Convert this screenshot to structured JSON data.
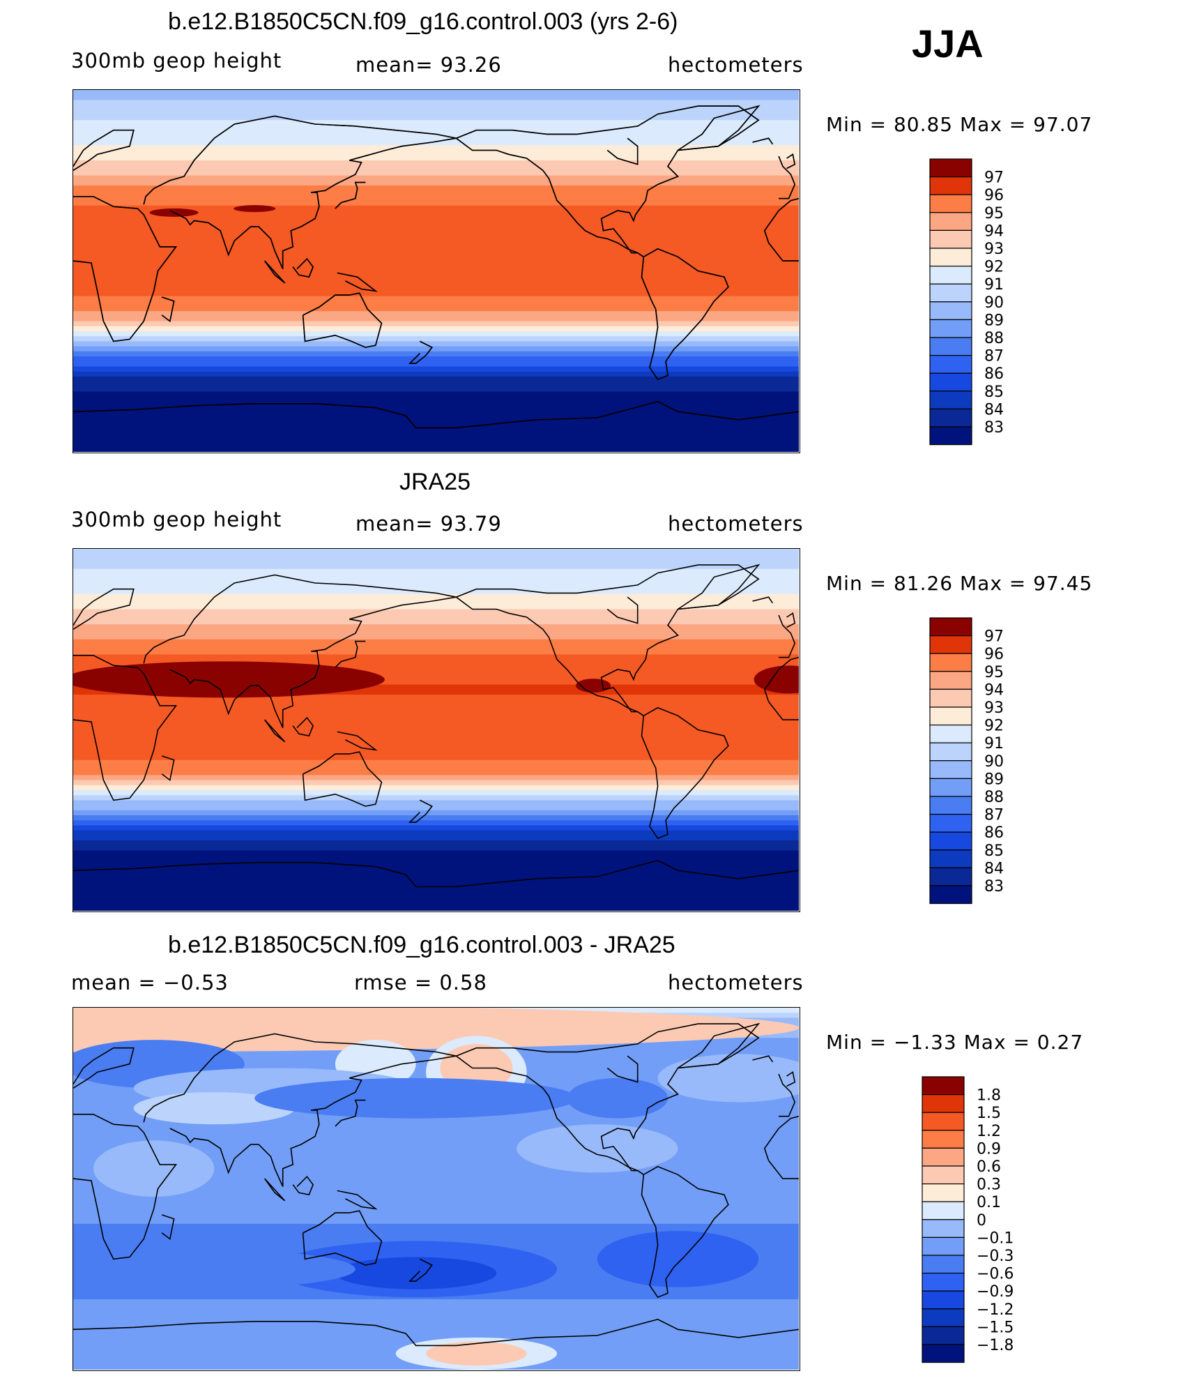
{
  "season": "JJA",
  "panels": [
    {
      "title": "b.e12.B1850C5CN.f09_g16.control.003 (yrs 2-6)",
      "left_label": "300mb geop height",
      "center_label": "mean=   93.26",
      "right_label": "hectometers",
      "minmax": "Min =   80.85 Max =   97.07"
    },
    {
      "title": "JRA25",
      "left_label": "300mb geop height",
      "center_label": "mean=   93.79",
      "right_label": "hectometers",
      "minmax": "Min =   81.26 Max =   97.45"
    },
    {
      "title": "b.e12.B1850C5CN.f09_g16.control.003 - JRA25",
      "left_label": "mean =   −0.53",
      "center_label": "rmse =    0.58",
      "right_label": "hectometers",
      "minmax": "Min =   −1.33 Max =    0.27"
    }
  ],
  "chart_data": [
    {
      "type": "heatmap",
      "title": "b.e12.B1850C5CN.f09_g16.control.003 (yrs 2-6)",
      "variable": "300mb geop height",
      "units": "hectometers",
      "mean": 93.26,
      "min": 80.85,
      "max": 97.07,
      "lon_range": [
        0,
        360
      ],
      "lat_range": [
        -90,
        90
      ],
      "colorbar_levels": [
        "97",
        "96",
        "95",
        "94",
        "93",
        "92",
        "91",
        "90",
        "89",
        "88",
        "87",
        "86",
        "85",
        "84",
        "83"
      ],
      "zonal_profile": [
        {
          "lat": 90,
          "value": 89.5
        },
        {
          "lat": 80,
          "value": 90.5
        },
        {
          "lat": 70,
          "value": 91.3
        },
        {
          "lat": 60,
          "value": 92.4
        },
        {
          "lat": 50,
          "value": 93.8
        },
        {
          "lat": 40,
          "value": 95.2
        },
        {
          "lat": 30,
          "value": 96.2
        },
        {
          "lat": 20,
          "value": 96.7
        },
        {
          "lat": 10,
          "value": 96.6
        },
        {
          "lat": 0,
          "value": 96.5
        },
        {
          "lat": -10,
          "value": 96.3
        },
        {
          "lat": -20,
          "value": 95.3
        },
        {
          "lat": -25,
          "value": 94.0
        },
        {
          "lat": -30,
          "value": 92.0
        },
        {
          "lat": -35,
          "value": 90.0
        },
        {
          "lat": -40,
          "value": 88.2
        },
        {
          "lat": -45,
          "value": 86.5
        },
        {
          "lat": -50,
          "value": 85.0
        },
        {
          "lat": -55,
          "value": 83.6
        },
        {
          "lat": -60,
          "value": 82.8
        },
        {
          "lat": -70,
          "value": 81.5
        },
        {
          "lat": -90,
          "value": 81.0
        }
      ]
    },
    {
      "type": "heatmap",
      "title": "JRA25",
      "variable": "300mb geop height",
      "units": "hectometers",
      "mean": 93.79,
      "min": 81.26,
      "max": 97.45,
      "lon_range": [
        0,
        360
      ],
      "lat_range": [
        -90,
        90
      ],
      "colorbar_levels": [
        "97",
        "96",
        "95",
        "94",
        "93",
        "92",
        "91",
        "90",
        "89",
        "88",
        "87",
        "86",
        "85",
        "84",
        "83"
      ],
      "zonal_profile": [
        {
          "lat": 90,
          "value": 90.2
        },
        {
          "lat": 80,
          "value": 91.0
        },
        {
          "lat": 70,
          "value": 91.8
        },
        {
          "lat": 60,
          "value": 93.0
        },
        {
          "lat": 50,
          "value": 94.4
        },
        {
          "lat": 40,
          "value": 95.8
        },
        {
          "lat": 30,
          "value": 96.8
        },
        {
          "lat": 20,
          "value": 97.1
        },
        {
          "lat": 10,
          "value": 96.8
        },
        {
          "lat": 0,
          "value": 96.6
        },
        {
          "lat": -10,
          "value": 96.4
        },
        {
          "lat": -20,
          "value": 95.5
        },
        {
          "lat": -25,
          "value": 94.3
        },
        {
          "lat": -30,
          "value": 92.4
        },
        {
          "lat": -35,
          "value": 90.4
        },
        {
          "lat": -40,
          "value": 88.6
        },
        {
          "lat": -45,
          "value": 86.8
        },
        {
          "lat": -50,
          "value": 85.3
        },
        {
          "lat": -55,
          "value": 84.0
        },
        {
          "lat": -60,
          "value": 83.1
        },
        {
          "lat": -70,
          "value": 82.0
        },
        {
          "lat": -90,
          "value": 81.4
        }
      ]
    },
    {
      "type": "heatmap",
      "title": "b.e12.B1850C5CN.f09_g16.control.003 - JRA25",
      "units": "hectometers",
      "mean": -0.53,
      "rmse": 0.58,
      "min": -1.33,
      "max": 0.27,
      "lon_range": [
        0,
        360
      ],
      "lat_range": [
        -90,
        90
      ],
      "colorbar_levels": [
        "1.8",
        "1.5",
        "1.2",
        "0.9",
        "0.6",
        "0.3",
        "0.1",
        "0",
        "−0.1",
        "−0.3",
        "−0.6",
        "−0.9",
        "−1.2",
        "−1.5",
        "−1.8"
      ],
      "zonal_profile": [
        {
          "lat": 90,
          "value": 0.05
        },
        {
          "lat": 80,
          "value": -0.2
        },
        {
          "lat": 70,
          "value": -0.45
        },
        {
          "lat": 60,
          "value": -0.5
        },
        {
          "lat": 50,
          "value": -0.5
        },
        {
          "lat": 40,
          "value": -0.45
        },
        {
          "lat": 30,
          "value": -0.55
        },
        {
          "lat": 20,
          "value": -0.5
        },
        {
          "lat": 10,
          "value": -0.4
        },
        {
          "lat": 0,
          "value": -0.35
        },
        {
          "lat": -10,
          "value": -0.45
        },
        {
          "lat": -20,
          "value": -0.65
        },
        {
          "lat": -30,
          "value": -0.7
        },
        {
          "lat": -40,
          "value": -0.85
        },
        {
          "lat": -50,
          "value": -0.7
        },
        {
          "lat": -60,
          "value": -0.5
        },
        {
          "lat": -70,
          "value": -0.45
        },
        {
          "lat": -80,
          "value": -0.55
        },
        {
          "lat": -90,
          "value": -0.4
        }
      ]
    }
  ],
  "colors": {
    "full": [
      "#00137d",
      "#0a2896",
      "#0d3bc0",
      "#1749e0",
      "#2f62f0",
      "#4a7cf2",
      "#729ef7",
      "#98bafa",
      "#bcd4fb",
      "#dbebfd",
      "#fdecd8",
      "#fccab3",
      "#fca784",
      "#fc7d45",
      "#f55a24",
      "#e03508",
      "#c32405",
      "#a11404",
      "#890200"
    ],
    "diff": [
      "#00137d",
      "#0a2896",
      "#0d3bc0",
      "#1749e0",
      "#2f62f0",
      "#4a7cf2",
      "#729ef7",
      "#98bafa",
      "#bcd4fb",
      "#dbebfd",
      "#fdecd8",
      "#fccab3",
      "#fca784",
      "#fc7d45",
      "#f55a24",
      "#e03508",
      "#c32405",
      "#a11404",
      "#890200"
    ]
  }
}
